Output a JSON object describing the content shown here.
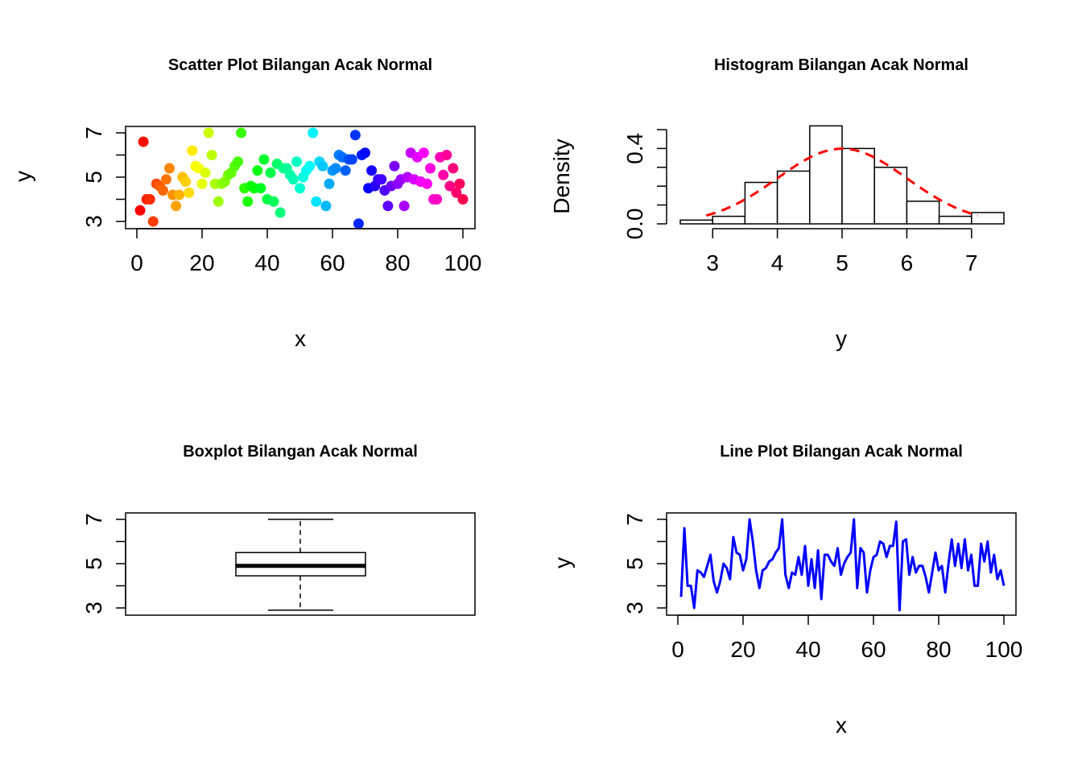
{
  "chart_data": [
    {
      "type": "scatter",
      "title": "Scatter Plot Bilangan Acak Normal",
      "xlabel": "x",
      "ylabel": "y",
      "xlim": [
        0,
        100
      ],
      "ylim": [
        3,
        7
      ],
      "xticks": [
        "0",
        "20",
        "40",
        "60",
        "80",
        "100"
      ],
      "yticks": [
        "3",
        "5",
        "7"
      ],
      "point_colors": "rainbow gradient from red through yellow, green, cyan, blue, magenta back to red",
      "x": [
        1,
        2,
        3,
        4,
        5,
        6,
        7,
        8,
        9,
        10,
        11,
        12,
        13,
        14,
        15,
        16,
        17,
        18,
        19,
        20,
        21,
        22,
        23,
        24,
        25,
        26,
        27,
        28,
        29,
        30,
        31,
        32,
        33,
        34,
        35,
        36,
        37,
        38,
        39,
        40,
        41,
        42,
        43,
        44,
        45,
        46,
        47,
        48,
        49,
        50,
        51,
        52,
        53,
        54,
        55,
        56,
        57,
        58,
        59,
        60,
        61,
        62,
        63,
        64,
        65,
        66,
        67,
        68,
        69,
        70,
        71,
        72,
        73,
        74,
        75,
        76,
        77,
        78,
        79,
        80,
        81,
        82,
        83,
        84,
        85,
        86,
        87,
        88,
        89,
        90,
        91,
        92,
        93,
        94,
        95,
        96,
        97,
        98,
        99,
        100
      ],
      "y": [
        3.5,
        6.6,
        4.0,
        4.0,
        3.0,
        4.7,
        4.6,
        4.4,
        4.9,
        5.4,
        4.2,
        3.7,
        4.2,
        5.0,
        4.8,
        4.3,
        6.2,
        5.5,
        5.4,
        4.7,
        5.2,
        7.0,
        6.0,
        4.7,
        3.9,
        4.7,
        4.8,
        5.1,
        5.2,
        5.5,
        5.7,
        7.0,
        4.5,
        3.9,
        4.6,
        4.5,
        5.3,
        4.5,
        5.8,
        4.0,
        5.2,
        3.9,
        5.6,
        3.4,
        5.4,
        5.4,
        5.1,
        4.9,
        5.7,
        4.5,
        5.0,
        5.3,
        5.5,
        7.0,
        3.9,
        5.7,
        5.5,
        3.7,
        4.7,
        5.3,
        5.4,
        6.0,
        5.9,
        5.3,
        5.8,
        5.8,
        6.9,
        2.9,
        6.0,
        6.1,
        4.5,
        5.3,
        4.6,
        4.9,
        4.9,
        4.4,
        3.7,
        4.6,
        5.5,
        4.7,
        4.9,
        3.7,
        5.0,
        6.1,
        4.9,
        5.9,
        4.8,
        6.1,
        4.7,
        5.4,
        4.0,
        4.0,
        5.9,
        5.1,
        6.0,
        4.6,
        5.4,
        4.3,
        4.7,
        4.0
      ]
    },
    {
      "type": "bar",
      "title": "Histogram Bilangan Acak Normal",
      "xlabel": "y",
      "ylabel": "Density",
      "xlim": [
        2.5,
        7.5
      ],
      "ylim": [
        0,
        0.5
      ],
      "xticks": [
        "3",
        "4",
        "5",
        "6",
        "7"
      ],
      "yticks": [
        "0.0",
        "0.4"
      ],
      "bin_edges": [
        2.5,
        3.0,
        3.5,
        4.0,
        4.5,
        5.0,
        5.5,
        6.0,
        6.5,
        7.0,
        7.5
      ],
      "density": [
        0.02,
        0.04,
        0.22,
        0.28,
        0.52,
        0.4,
        0.3,
        0.12,
        0.04,
        0.06
      ],
      "density_curve": {
        "type": "line",
        "style": "dashed",
        "color": "#ff0000",
        "mean": 5.0,
        "sd": 1.0
      }
    },
    {
      "type": "box",
      "title": "Boxplot Bilangan Acak Normal",
      "ylim": [
        3,
        7
      ],
      "yticks": [
        "3",
        "5",
        "7"
      ],
      "min": 2.9,
      "q1": 4.45,
      "median": 4.9,
      "q3": 5.5,
      "max": 7.0
    },
    {
      "type": "line",
      "title": "Line Plot Bilangan Acak Normal",
      "xlabel": "x",
      "ylabel": "y",
      "color": "#0000ff",
      "xlim": [
        0,
        100
      ],
      "ylim": [
        3,
        7
      ],
      "xticks": [
        "0",
        "20",
        "40",
        "60",
        "80",
        "100"
      ],
      "yticks": [
        "3",
        "5",
        "7"
      ],
      "same_data_as": "scatter"
    }
  ]
}
